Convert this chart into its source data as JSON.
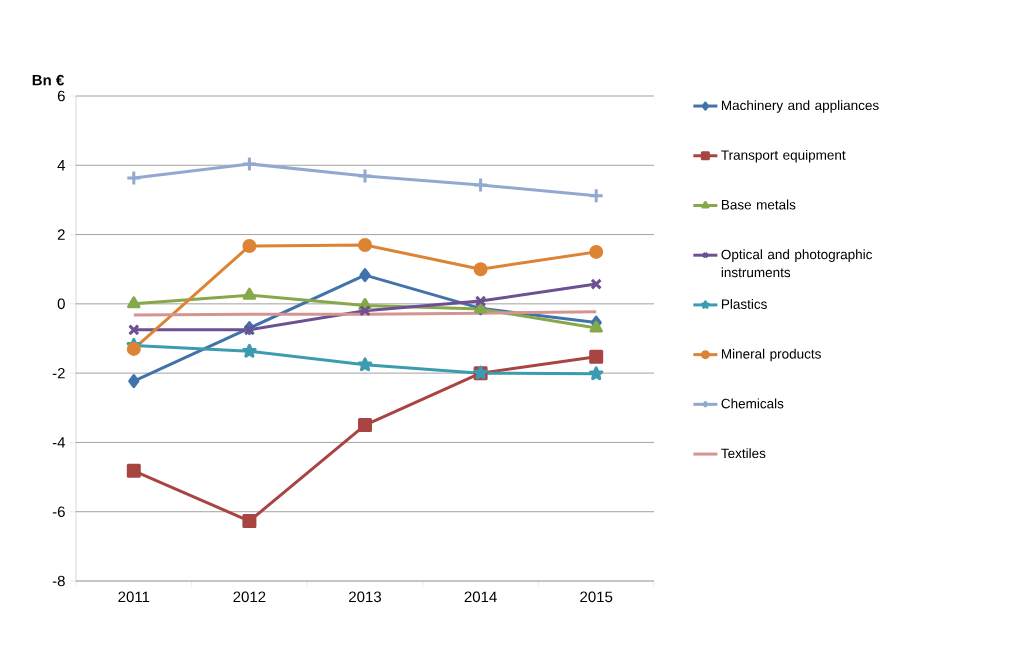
{
  "chart_data": {
    "type": "line",
    "ylabel": "Bn €",
    "categories": [
      "2011",
      "2012",
      "2013",
      "2014",
      "2015"
    ],
    "ylim": [
      -8,
      6
    ],
    "yticks": [
      -8,
      -6,
      -4,
      -2,
      0,
      2,
      4,
      6
    ],
    "grid": "y",
    "legend": "right",
    "line_style": "solid",
    "series": [
      {
        "name": "Machinery and appliances",
        "color": "#4272aa",
        "marker": "diamond",
        "values": [
          -2.23,
          -0.7,
          0.83,
          -0.13,
          -0.54
        ]
      },
      {
        "name": "Transport equipment",
        "color": "#a84442",
        "marker": "square",
        "values": [
          -4.82,
          -6.27,
          -3.5,
          -2.0,
          -1.53
        ]
      },
      {
        "name": "Base metals",
        "color": "#86a84a",
        "marker": "triangle",
        "values": [
          0.0,
          0.25,
          -0.05,
          -0.15,
          -0.7
        ]
      },
      {
        "name": "Optical and photographic instruments",
        "color": "#6d5092",
        "marker": "cross",
        "values": [
          -0.75,
          -0.75,
          -0.2,
          0.08,
          0.57
        ]
      },
      {
        "name": "Plastics",
        "color": "#3c9bb0",
        "marker": "star",
        "values": [
          -1.2,
          -1.37,
          -1.76,
          -2.0,
          -2.02
        ]
      },
      {
        "name": "Mineral products",
        "color": "#dc8434",
        "marker": "circle",
        "values": [
          -1.3,
          1.67,
          1.7,
          1.0,
          1.5
        ]
      },
      {
        "name": "Chemicals",
        "color": "#91a8d0",
        "marker": "plus",
        "values": [
          3.63,
          4.04,
          3.69,
          3.43,
          3.12
        ]
      },
      {
        "name": "Textiles",
        "color": "#d49592",
        "marker": "none",
        "values": [
          -0.32,
          -0.3,
          -0.3,
          -0.27,
          -0.23
        ]
      }
    ]
  }
}
